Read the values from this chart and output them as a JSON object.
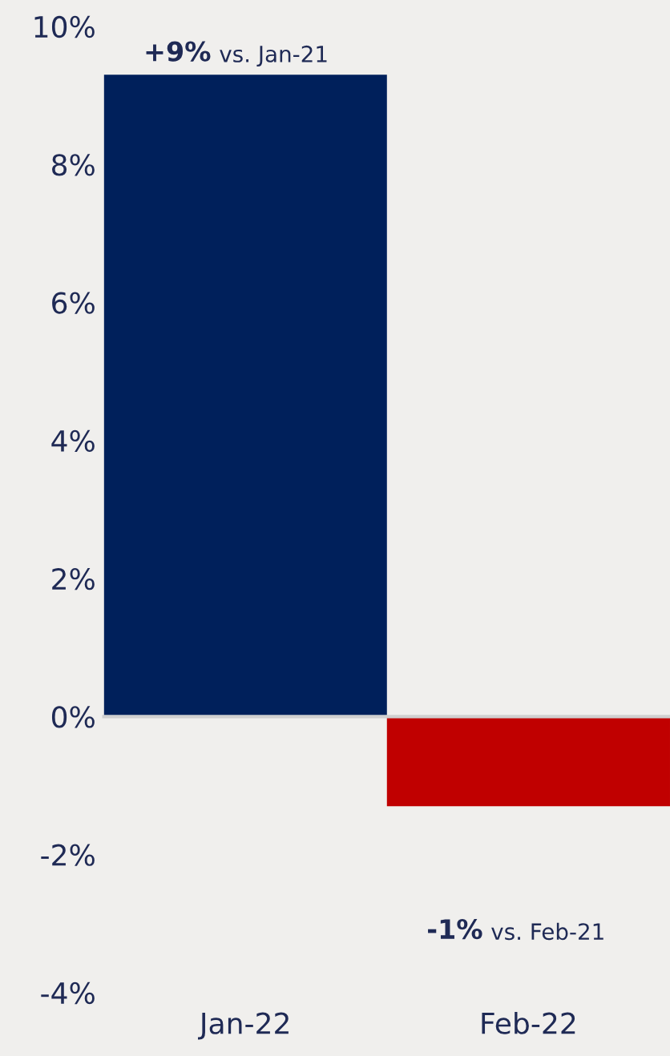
{
  "chart_data": {
    "type": "bar",
    "categories": [
      "Jan-22",
      "Feb-22"
    ],
    "colors": [
      "#00205b",
      "#c00000"
    ],
    "values": [
      9.3,
      -1.3
    ],
    "ylim": [
      -4,
      10
    ],
    "yticks": [
      {
        "value": -4,
        "label": "-4%"
      },
      {
        "value": -2,
        "label": "-2%"
      },
      {
        "value": 0,
        "label": "0%"
      },
      {
        "value": 2,
        "label": "2%"
      },
      {
        "value": 4,
        "label": "4%"
      },
      {
        "value": 6,
        "label": "6%"
      },
      {
        "value": 8,
        "label": "8%"
      },
      {
        "value": 10,
        "label": "10%"
      }
    ],
    "legend": false,
    "annotations": [
      {
        "text": "+9% vs. Jan-21",
        "x": "Jan-22",
        "y": 9.3
      },
      "-1% vs. Feb-21"
    ]
  }
}
